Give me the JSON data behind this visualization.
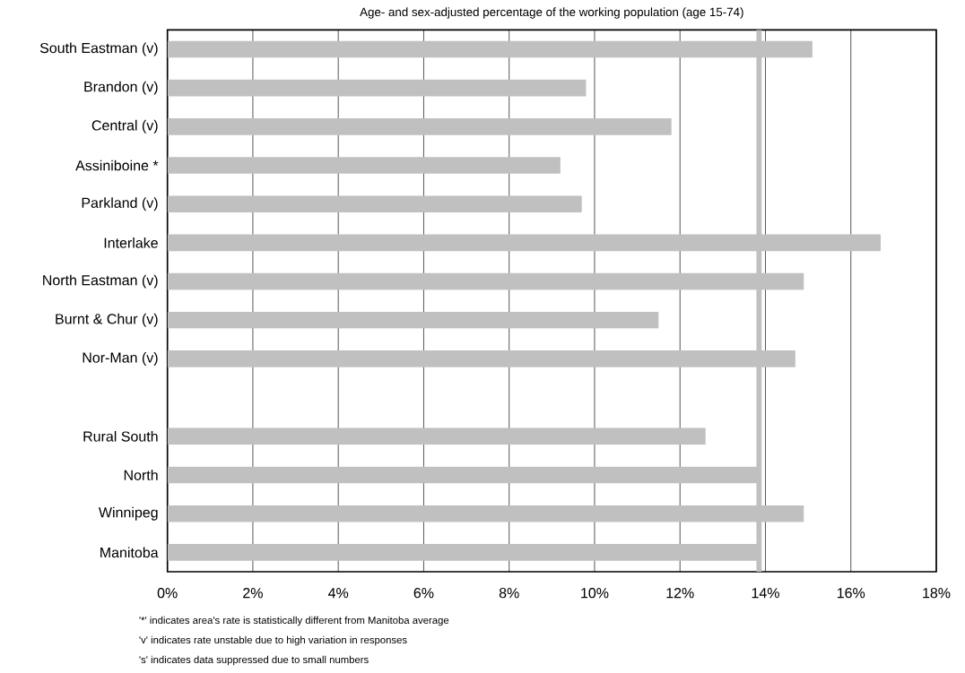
{
  "chart_data": {
    "type": "bar",
    "orientation": "horizontal",
    "title": "Age- and sex-adjusted percentage of the working population (age 15-74)",
    "categories": [
      "South Eastman (v)",
      "Brandon (v)",
      "Central (v)",
      "Assiniboine *",
      "Parkland (v)",
      "Interlake",
      "North Eastman (v)",
      "Burnt & Chur (v)",
      "Nor-Man (v)",
      null,
      "Rural South",
      "North",
      "Winnipeg",
      "Manitoba"
    ],
    "values": [
      15.1,
      9.8,
      11.8,
      9.2,
      9.7,
      16.7,
      14.9,
      11.5,
      14.7,
      null,
      12.6,
      13.85,
      14.9,
      13.85
    ],
    "color": "#c0c0c0",
    "xlim": [
      0,
      18
    ],
    "xticks": [
      {
        "value": 0,
        "label": "0%"
      },
      {
        "value": 2,
        "label": "2%"
      },
      {
        "value": 4,
        "label": "4%"
      },
      {
        "value": 6,
        "label": "6%"
      },
      {
        "value": 8,
        "label": "8%"
      },
      {
        "value": 10,
        "label": "10%"
      },
      {
        "value": 12,
        "label": "12%"
      },
      {
        "value": 14,
        "label": "14%"
      },
      {
        "value": 16,
        "label": "16%"
      },
      {
        "value": 18,
        "label": "18%"
      }
    ],
    "grid": "x",
    "ref_lines": [
      {
        "axis": "x",
        "value": 13.85,
        "color": "#c0c0c0"
      }
    ],
    "annotations": [
      "'*' indicates area's rate is statistically different from Manitoba average",
      "'v' indicates rate unstable due to high variation in responses",
      "'s' indicates data suppressed due to small numbers"
    ]
  }
}
